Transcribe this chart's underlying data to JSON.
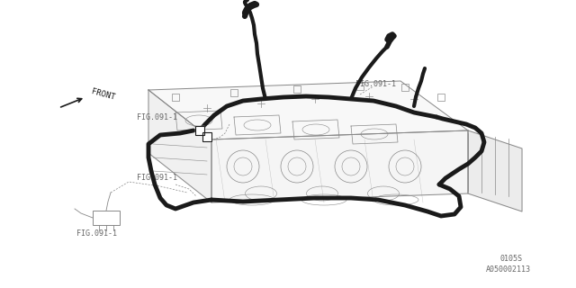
{
  "bg_color": "#ffffff",
  "line_color": "#1a1a1a",
  "body_color": "#444444",
  "thin_color": "#888888",
  "label_color": "#666666",
  "code1": "0105S",
  "code2": "A050002113",
  "fig_label": "FIG.091-1",
  "front_label": "FRONT",
  "harness_lw": 3.5,
  "body_lw": 0.7
}
